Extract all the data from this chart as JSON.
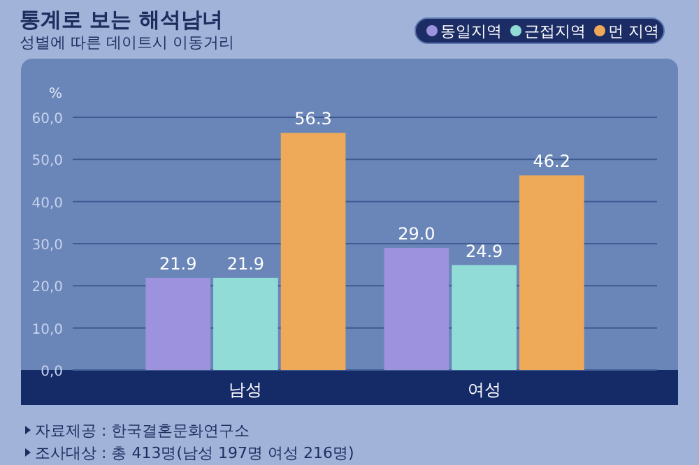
{
  "chart_data": {
    "type": "bar",
    "title": "통계로 보는 해석남녀",
    "subtitle": "성별에 따른 데이트시 이동거리",
    "ylabel": "%",
    "categories": [
      "남성",
      "여성"
    ],
    "series": [
      {
        "name": "동일지역",
        "color": "#9d92de",
        "values": [
          21.9,
          29.0
        ]
      },
      {
        "name": "근접지역",
        "color": "#92dcd8",
        "values": [
          21.9,
          24.9
        ]
      },
      {
        "name": "먼 지역",
        "color": "#eeaa58",
        "values": [
          56.3,
          46.2
        ]
      }
    ],
    "ylim": [
      0,
      60
    ],
    "yticks": [
      {
        "value": 0,
        "label": "0,0"
      },
      {
        "value": 10,
        "label": "10,0"
      },
      {
        "value": 20,
        "label": "20,0"
      },
      {
        "value": 30,
        "label": "30,0"
      },
      {
        "value": 40,
        "label": "40,0"
      },
      {
        "value": 50,
        "label": "50,0"
      },
      {
        "value": 60,
        "label": "60,0"
      }
    ],
    "grid": "y",
    "legend": "top right",
    "value_labels": [
      [
        "21.9",
        "29.0"
      ],
      [
        "21.9",
        "24.9"
      ],
      [
        "56.3",
        "46.2"
      ]
    ],
    "annotations": [
      "자료제공 : 한국결혼문화연구소",
      "조사대상 : 총 413명(남성 197명 여성 216명)"
    ]
  }
}
